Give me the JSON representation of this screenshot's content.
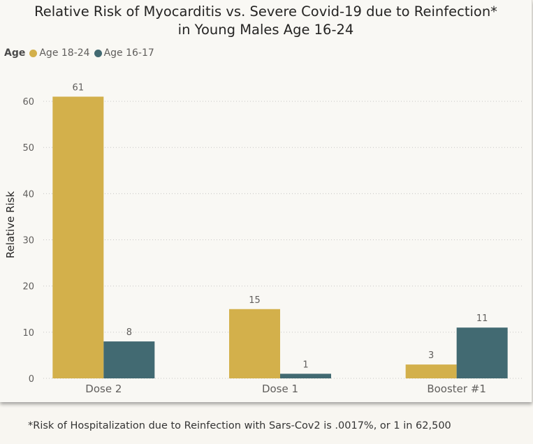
{
  "chart_data": {
    "type": "bar",
    "title_lines": [
      "Relative Risk of Myocarditis vs. Severe Covid-19 due to Reinfection*",
      "in Young Males Age 16-24"
    ],
    "legend": {
      "title": "Age",
      "placement": "top-left"
    },
    "ylabel": "Relative Risk",
    "xlabel": "",
    "ylim": [
      0,
      65
    ],
    "yticks": [
      0,
      10,
      20,
      30,
      40,
      50,
      60
    ],
    "grid": true,
    "categories": [
      "Dose 2",
      "Dose 1",
      "Booster #1"
    ],
    "series": [
      {
        "name": "Age 18-24",
        "color": "#d3b04b",
        "values": [
          61,
          15,
          3
        ]
      },
      {
        "name": "Age 16-17",
        "color": "#426a72",
        "values": [
          8,
          1,
          11
        ]
      }
    ]
  },
  "footnote": "*Risk of Hospitalization due to Reinfection with Sars-Cov2 is .0017%, or 1 in 62,500"
}
